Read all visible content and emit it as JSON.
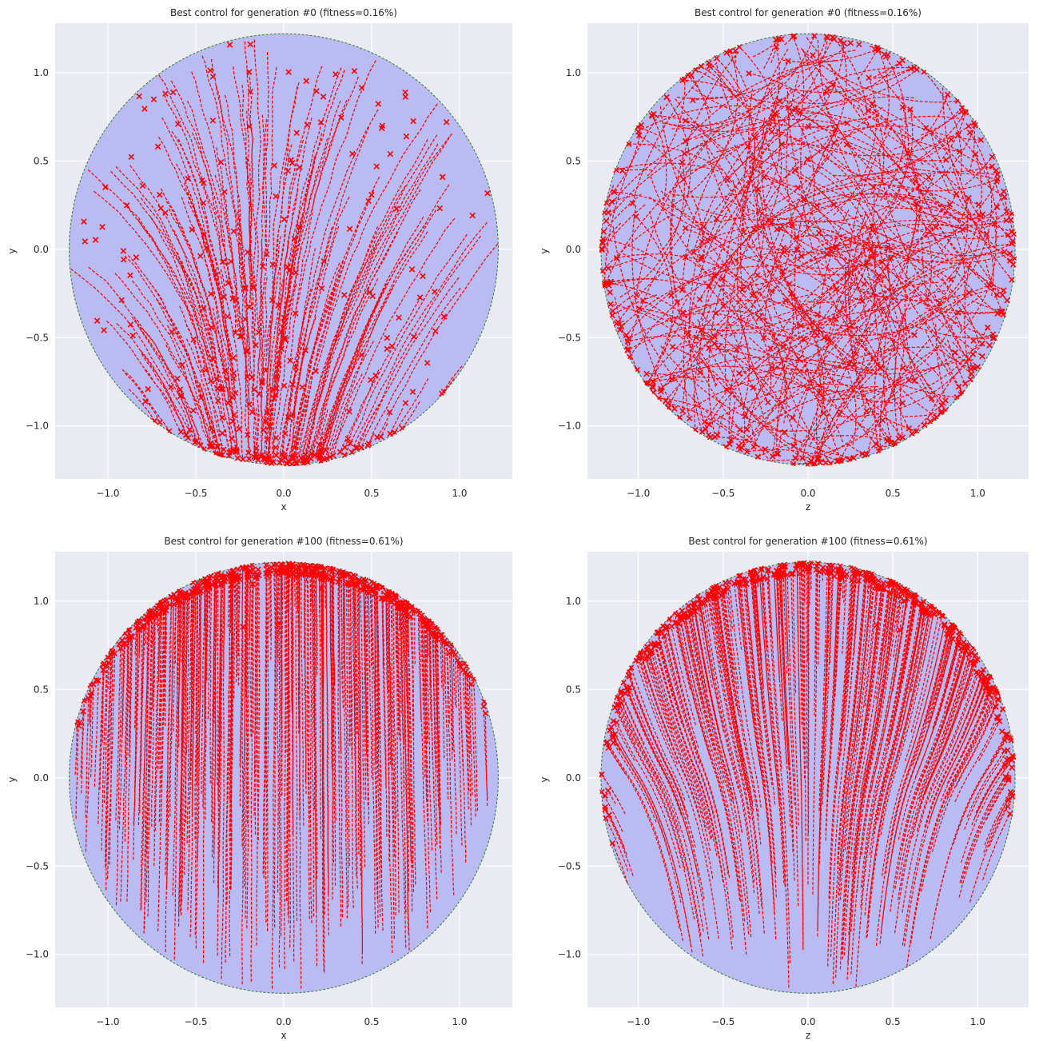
{
  "chart_data": [
    {
      "type": "scatter",
      "title": "Best control for generation #0 (fitness=0.16%)",
      "xlabel": "x",
      "ylabel": "y",
      "xlim": [
        -1.3,
        1.3
      ],
      "ylim": [
        -1.3,
        1.28
      ],
      "xticks": [
        "−1.0",
        "−0.5",
        "0.0",
        "0.5",
        "1.0"
      ],
      "xtick_values": [
        -1.0,
        -0.5,
        0.0,
        0.5,
        1.0
      ],
      "yticks": [
        "−1.0",
        "−0.5",
        "0.0",
        "0.5",
        "1.0"
      ],
      "ytick_values": [
        -1.0,
        -0.5,
        0.0,
        0.5,
        1.0
      ],
      "grid": true,
      "disk_radius": 1.22,
      "trajectory_pattern": "gen0-xy",
      "colors": {
        "disk": "#b9bbf2",
        "trajectory": "#ff0000",
        "endpoint": "#ff0000",
        "boundary": "#2e7d32",
        "axes_bg": "#eaeaf2"
      }
    },
    {
      "type": "scatter",
      "title": "Best control for generation #0 (fitness=0.16%)",
      "xlabel": "z",
      "ylabel": "y",
      "xlim": [
        -1.3,
        1.3
      ],
      "ylim": [
        -1.3,
        1.28
      ],
      "xticks": [
        "−1.0",
        "−0.5",
        "0.0",
        "0.5",
        "1.0"
      ],
      "xtick_values": [
        -1.0,
        -0.5,
        0.0,
        0.5,
        1.0
      ],
      "yticks": [
        "−1.0",
        "−0.5",
        "0.0",
        "0.5",
        "1.0"
      ],
      "ytick_values": [
        -1.0,
        -0.5,
        0.0,
        0.5,
        1.0
      ],
      "grid": true,
      "disk_radius": 1.22,
      "trajectory_pattern": "gen0-zy",
      "colors": {
        "disk": "#b9bbf2",
        "trajectory": "#ff0000",
        "endpoint": "#ff0000",
        "boundary": "#2e7d32",
        "axes_bg": "#eaeaf2"
      }
    },
    {
      "type": "scatter",
      "title": "Best control for generation #100 (fitness=0.61%)",
      "xlabel": "x",
      "ylabel": "y",
      "xlim": [
        -1.3,
        1.3
      ],
      "ylim": [
        -1.3,
        1.28
      ],
      "xticks": [
        "−1.0",
        "−0.5",
        "0.0",
        "0.5",
        "1.0"
      ],
      "xtick_values": [
        -1.0,
        -0.5,
        0.0,
        0.5,
        1.0
      ],
      "yticks": [
        "−1.0",
        "−0.5",
        "0.0",
        "0.5",
        "1.0"
      ],
      "ytick_values": [
        -1.0,
        -0.5,
        0.0,
        0.5,
        1.0
      ],
      "grid": true,
      "disk_radius": 1.22,
      "trajectory_pattern": "gen100-xy",
      "colors": {
        "disk": "#b9bbf2",
        "trajectory": "#ff0000",
        "endpoint": "#ff0000",
        "boundary": "#2e7d32",
        "axes_bg": "#eaeaf2"
      }
    },
    {
      "type": "scatter",
      "title": "Best control for generation #100 (fitness=0.61%)",
      "xlabel": "z",
      "ylabel": "y",
      "xlim": [
        -1.3,
        1.3
      ],
      "ylim": [
        -1.3,
        1.28
      ],
      "xticks": [
        "−1.0",
        "−0.5",
        "0.0",
        "0.5",
        "1.0"
      ],
      "xtick_values": [
        -1.0,
        -0.5,
        0.0,
        0.5,
        1.0
      ],
      "yticks": [
        "−1.0",
        "−0.5",
        "0.0",
        "0.5",
        "1.0"
      ],
      "ytick_values": [
        -1.0,
        -0.5,
        0.0,
        0.5,
        1.0
      ],
      "grid": true,
      "disk_radius": 1.22,
      "trajectory_pattern": "gen100-zy",
      "colors": {
        "disk": "#b9bbf2",
        "trajectory": "#ff0000",
        "endpoint": "#ff0000",
        "boundary": "#2e7d32",
        "axes_bg": "#eaeaf2"
      }
    }
  ]
}
